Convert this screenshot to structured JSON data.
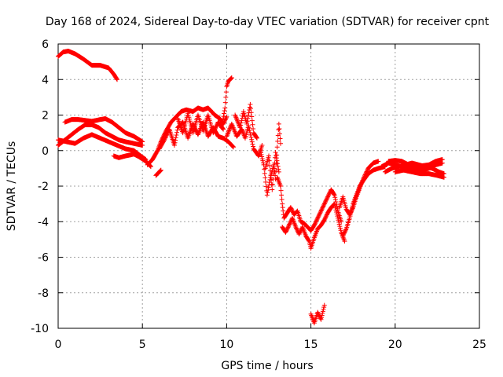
{
  "chart_data": {
    "type": "scatter",
    "title": "Day 168 of 2024, Sidereal Day-to-day VTEC variation (SDTVAR) for receiver cpnt",
    "xlabel": "GPS time / hours",
    "ylabel": "SDTVAR / TECUs",
    "xlim": [
      0,
      25
    ],
    "ylim": [
      -10,
      6
    ],
    "x_ticks": [
      0,
      5,
      10,
      15,
      20,
      25
    ],
    "y_ticks": [
      -10,
      -8,
      -6,
      -4,
      -2,
      0,
      2,
      4,
      6
    ],
    "grid": true,
    "marker": "+",
    "series": [
      {
        "name": "SDTVAR",
        "color": "#ff0000",
        "segments": [
          [
            [
              0.0,
              5.3
            ],
            [
              0.3,
              5.55
            ],
            [
              0.6,
              5.6
            ],
            [
              1.0,
              5.45
            ],
            [
              1.5,
              5.15
            ],
            [
              2.0,
              4.8
            ],
            [
              2.5,
              4.8
            ],
            [
              3.0,
              4.65
            ],
            [
              3.3,
              4.3
            ],
            [
              3.5,
              4.0
            ]
          ],
          [
            [
              0.4,
              1.6
            ],
            [
              0.8,
              1.75
            ],
            [
              1.2,
              1.75
            ],
            [
              1.6,
              1.7
            ],
            [
              2.0,
              1.65
            ],
            [
              2.5,
              1.75
            ],
            [
              2.8,
              1.8
            ],
            [
              3.2,
              1.6
            ],
            [
              3.6,
              1.3
            ],
            [
              4.0,
              1.0
            ],
            [
              4.5,
              0.8
            ],
            [
              5.0,
              0.5
            ]
          ],
          [
            [
              0.0,
              0.3
            ],
            [
              0.4,
              0.6
            ],
            [
              0.8,
              0.9
            ],
            [
              1.2,
              1.2
            ],
            [
              1.6,
              1.45
            ],
            [
              2.0,
              1.45
            ],
            [
              2.4,
              1.3
            ],
            [
              2.8,
              1.0
            ],
            [
              3.2,
              0.8
            ],
            [
              3.6,
              0.6
            ],
            [
              4.0,
              0.5
            ],
            [
              4.5,
              0.4
            ],
            [
              5.0,
              0.3
            ]
          ],
          [
            [
              0.0,
              0.6
            ],
            [
              0.5,
              0.5
            ],
            [
              1.0,
              0.4
            ],
            [
              1.5,
              0.7
            ],
            [
              2.0,
              0.9
            ],
            [
              2.5,
              0.7
            ],
            [
              3.0,
              0.5
            ],
            [
              3.5,
              0.3
            ],
            [
              4.0,
              0.1
            ],
            [
              4.5,
              0.0
            ],
            [
              4.9,
              -0.3
            ],
            [
              5.2,
              -0.5
            ]
          ],
          [
            [
              3.3,
              -0.3
            ],
            [
              3.6,
              -0.4
            ],
            [
              4.0,
              -0.3
            ],
            [
              4.5,
              -0.2
            ],
            [
              4.8,
              -0.35
            ],
            [
              5.2,
              -0.6
            ],
            [
              5.5,
              -0.9
            ]
          ],
          [
            [
              5.8,
              -1.4
            ],
            [
              6.0,
              -1.2
            ],
            [
              6.1,
              -1.1
            ]
          ],
          [
            [
              5.3,
              -0.8
            ],
            [
              5.6,
              -0.5
            ],
            [
              5.9,
              0.0
            ],
            [
              6.1,
              0.5
            ],
            [
              6.4,
              1.1
            ],
            [
              6.7,
              1.6
            ],
            [
              7.0,
              1.9
            ],
            [
              7.3,
              2.2
            ],
            [
              7.6,
              2.3
            ],
            [
              8.0,
              2.2
            ],
            [
              8.3,
              2.4
            ],
            [
              8.6,
              2.3
            ],
            [
              8.9,
              2.4
            ],
            [
              9.1,
              2.2
            ],
            [
              9.3,
              2.0
            ],
            [
              9.6,
              1.8
            ],
            [
              9.8,
              1.5
            ],
            [
              10.0,
              1.9
            ]
          ],
          [
            [
              6.0,
              0.1
            ],
            [
              6.3,
              0.6
            ],
            [
              6.6,
              1.2
            ],
            [
              6.9,
              0.3
            ],
            [
              7.1,
              1.3
            ],
            [
              7.4,
              1.6
            ],
            [
              7.7,
              0.7
            ],
            [
              8.0,
              1.5
            ],
            [
              8.3,
              0.9
            ],
            [
              8.6,
              1.6
            ],
            [
              8.9,
              0.8
            ],
            [
              9.2,
              1.3
            ],
            [
              9.5,
              0.8
            ],
            [
              9.8,
              0.7
            ],
            [
              10.1,
              0.5
            ],
            [
              10.4,
              0.2
            ]
          ],
          [
            [
              7.1,
              1.8
            ],
            [
              7.4,
              1.0
            ],
            [
              7.7,
              2.1
            ],
            [
              8.0,
              1.0
            ],
            [
              8.3,
              2.0
            ],
            [
              8.6,
              1.1
            ],
            [
              8.9,
              2.0
            ],
            [
              9.2,
              1.0
            ],
            [
              9.5,
              1.6
            ],
            [
              9.8,
              1.2
            ]
          ],
          [
            [
              9.7,
              1.3
            ],
            [
              9.9,
              2.4
            ],
            [
              10.0,
              3.6
            ],
            [
              10.1,
              3.9
            ],
            [
              10.3,
              4.1
            ]
          ],
          [
            [
              10.0,
              0.8
            ],
            [
              10.3,
              1.5
            ],
            [
              10.6,
              0.8
            ],
            [
              10.9,
              1.2
            ],
            [
              11.1,
              0.7
            ],
            [
              11.3,
              1.4
            ],
            [
              11.6,
              0.1
            ],
            [
              11.9,
              -0.3
            ],
            [
              12.1,
              0.3
            ]
          ],
          [
            [
              10.5,
              2.0
            ],
            [
              10.8,
              1.3
            ],
            [
              11.0,
              2.2
            ],
            [
              11.2,
              1.5
            ],
            [
              11.4,
              2.6
            ],
            [
              11.6,
              1.0
            ],
            [
              11.8,
              0.7
            ]
          ],
          [
            [
              12.0,
              0.0
            ],
            [
              12.2,
              -0.8
            ],
            [
              12.4,
              -2.5
            ],
            [
              12.6,
              -1.5
            ],
            [
              12.8,
              -0.8
            ],
            [
              12.9,
              -1.6
            ],
            [
              13.0,
              0.2
            ],
            [
              13.1,
              1.5
            ],
            [
              13.2,
              0.4
            ]
          ],
          [
            [
              12.3,
              -1.0
            ],
            [
              12.5,
              -0.3
            ],
            [
              12.7,
              -2.2
            ],
            [
              12.9,
              -0.1
            ],
            [
              13.1,
              -1.2
            ]
          ],
          [
            [
              13.0,
              -1.5
            ],
            [
              13.2,
              -2.0
            ],
            [
              13.3,
              -3.0
            ],
            [
              13.4,
              -3.8
            ],
            [
              13.6,
              -3.5
            ],
            [
              13.8,
              -3.2
            ],
            [
              14.0,
              -3.6
            ],
            [
              14.2,
              -3.4
            ],
            [
              14.4,
              -4.0
            ],
            [
              14.6,
              -4.1
            ],
            [
              14.8,
              -4.3
            ],
            [
              15.0,
              -4.5
            ],
            [
              15.2,
              -4.2
            ],
            [
              15.4,
              -3.8
            ],
            [
              15.6,
              -3.4
            ],
            [
              15.8,
              -3.0
            ],
            [
              16.0,
              -2.6
            ],
            [
              16.2,
              -2.2
            ],
            [
              16.4,
              -2.5
            ],
            [
              16.6,
              -3.4
            ],
            [
              16.8,
              -4.0
            ]
          ],
          [
            [
              13.3,
              -4.3
            ],
            [
              13.5,
              -4.6
            ],
            [
              13.7,
              -4.2
            ],
            [
              13.9,
              -3.8
            ],
            [
              14.1,
              -4.3
            ],
            [
              14.3,
              -4.7
            ],
            [
              14.5,
              -4.3
            ],
            [
              14.7,
              -4.8
            ],
            [
              14.9,
              -5.1
            ],
            [
              15.0,
              -5.5
            ],
            [
              15.2,
              -4.9
            ],
            [
              15.4,
              -4.4
            ],
            [
              15.6,
              -4.2
            ],
            [
              15.8,
              -3.9
            ],
            [
              16.0,
              -3.5
            ],
            [
              16.2,
              -3.2
            ],
            [
              16.4,
              -3.0
            ],
            [
              16.6,
              -3.8
            ],
            [
              16.8,
              -4.6
            ],
            [
              17.0,
              -5.1
            ]
          ],
          [
            [
              16.9,
              -4.8
            ],
            [
              17.1,
              -4.4
            ],
            [
              17.3,
              -3.8
            ],
            [
              17.5,
              -3.0
            ],
            [
              17.7,
              -2.5
            ],
            [
              17.9,
              -2.0
            ],
            [
              18.1,
              -1.7
            ],
            [
              18.4,
              -1.3
            ],
            [
              18.7,
              -1.1
            ],
            [
              19.0,
              -1.0
            ],
            [
              19.4,
              -0.9
            ]
          ],
          [
            [
              16.7,
              -3.2
            ],
            [
              16.9,
              -2.6
            ],
            [
              17.1,
              -3.3
            ],
            [
              17.3,
              -3.6
            ],
            [
              17.5,
              -3.2
            ],
            [
              17.7,
              -2.6
            ],
            [
              17.9,
              -2.1
            ],
            [
              18.1,
              -1.6
            ],
            [
              18.4,
              -1.0
            ],
            [
              18.7,
              -0.7
            ],
            [
              19.0,
              -0.6
            ]
          ],
          [
            [
              15.0,
              -9.2
            ],
            [
              15.2,
              -9.7
            ],
            [
              15.4,
              -9.1
            ],
            [
              15.6,
              -9.5
            ],
            [
              15.8,
              -8.7
            ]
          ],
          [
            [
              19.2,
              -0.9
            ],
            [
              19.6,
              -0.7
            ],
            [
              20.0,
              -0.8
            ],
            [
              20.4,
              -0.9
            ],
            [
              20.8,
              -1.0
            ],
            [
              21.2,
              -1.0
            ],
            [
              21.6,
              -1.1
            ],
            [
              22.0,
              -1.0
            ],
            [
              22.4,
              -0.8
            ],
            [
              22.8,
              -0.7
            ]
          ],
          [
            [
              19.4,
              -1.2
            ],
            [
              19.8,
              -1.0
            ],
            [
              20.2,
              -0.9
            ],
            [
              20.6,
              -0.8
            ],
            [
              21.0,
              -0.7
            ],
            [
              21.4,
              -0.8
            ],
            [
              21.8,
              -0.9
            ],
            [
              22.2,
              -1.0
            ],
            [
              22.6,
              -1.2
            ],
            [
              22.9,
              -1.3
            ]
          ],
          [
            [
              19.6,
              -0.6
            ],
            [
              20.0,
              -0.55
            ],
            [
              20.4,
              -0.6
            ],
            [
              20.8,
              -0.8
            ],
            [
              21.2,
              -0.9
            ],
            [
              21.6,
              -0.85
            ],
            [
              22.0,
              -0.8
            ],
            [
              22.4,
              -0.6
            ],
            [
              22.8,
              -0.5
            ]
          ],
          [
            [
              20.0,
              -1.2
            ],
            [
              20.5,
              -1.1
            ],
            [
              21.0,
              -1.2
            ],
            [
              21.5,
              -1.3
            ],
            [
              22.0,
              -1.3
            ],
            [
              22.5,
              -1.4
            ],
            [
              22.9,
              -1.5
            ]
          ]
        ]
      }
    ]
  }
}
